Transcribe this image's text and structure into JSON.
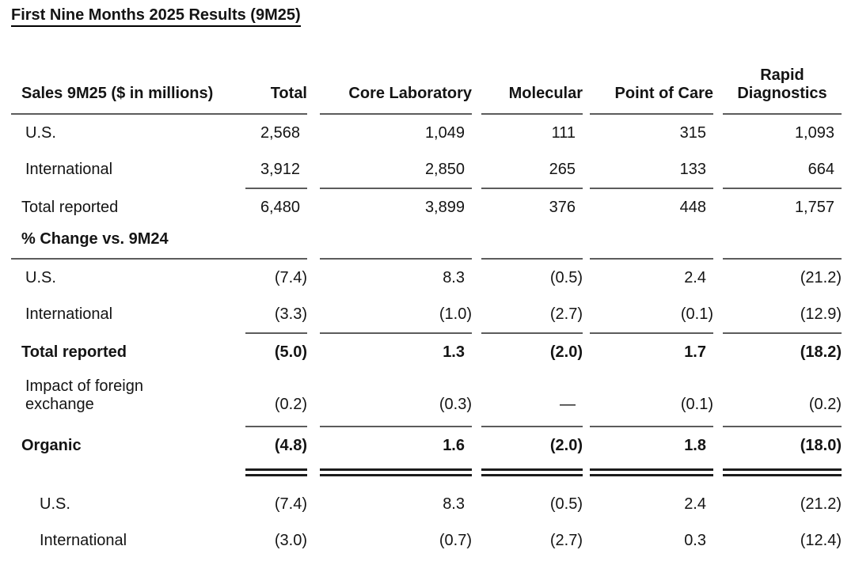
{
  "title": "First Nine Months 2025 Results (9M25)",
  "colors": {
    "text": "#141414",
    "single_rule": "#5c5c5c",
    "double_rule": "#1c1c1c",
    "background": "#ffffff"
  },
  "table": {
    "header": {
      "label": "Sales 9M25 ($ in millions)",
      "columns": [
        "Total",
        "Core Laboratory",
        "Molecular",
        "Point of Care",
        "Rapid Diagnostics"
      ]
    },
    "rows": [
      {
        "type": "rule",
        "variant": "wide"
      },
      {
        "type": "data",
        "label": "U.S.",
        "indent": 1,
        "bold": false,
        "values": [
          "2,568",
          "1,049",
          "111",
          "315",
          "1,093"
        ]
      },
      {
        "type": "data",
        "label": "International",
        "indent": 1,
        "bold": false,
        "values": [
          "3,912",
          "2,850",
          "265",
          "133",
          "664"
        ]
      },
      {
        "type": "rule",
        "variant": "short"
      },
      {
        "type": "data",
        "label": "Total reported",
        "indent": 0,
        "bold": false,
        "values": [
          "6,480",
          "3,899",
          "376",
          "448",
          "1,757"
        ]
      },
      {
        "type": "section",
        "label": "% Change vs. 9M24"
      },
      {
        "type": "rule",
        "variant": "wide"
      },
      {
        "type": "data",
        "label": "U.S.",
        "indent": 1,
        "bold": false,
        "values": [
          "(7.4)",
          "8.3",
          "(0.5)",
          "2.4",
          "(21.2)"
        ]
      },
      {
        "type": "data",
        "label": "International",
        "indent": 1,
        "bold": false,
        "values": [
          "(3.3)",
          "(1.0)",
          "(2.7)",
          "(0.1)",
          "(12.9)"
        ]
      },
      {
        "type": "rule",
        "variant": "short"
      },
      {
        "type": "data",
        "label": "Total reported",
        "indent": 0,
        "bold": true,
        "values": [
          "(5.0)",
          "1.3",
          "(2.0)",
          "1.7",
          "(18.2)"
        ]
      },
      {
        "type": "data",
        "label": "Impact of foreign\nexchange",
        "indent": 1,
        "bold": false,
        "tall": true,
        "values": [
          "(0.2)",
          "(0.3)",
          "—",
          "(0.1)",
          "(0.2)"
        ]
      },
      {
        "type": "rule",
        "variant": "short"
      },
      {
        "type": "data",
        "label": "Organic",
        "indent": 0,
        "bold": true,
        "values": [
          "(4.8)",
          "1.6",
          "(2.0)",
          "1.8",
          "(18.0)"
        ]
      },
      {
        "type": "rule",
        "variant": "double"
      },
      {
        "type": "data",
        "label": "U.S.",
        "indent": 2,
        "bold": false,
        "spaced": true,
        "values": [
          "(7.4)",
          "8.3",
          "(0.5)",
          "2.4",
          "(21.2)"
        ]
      },
      {
        "type": "data",
        "label": "International",
        "indent": 2,
        "bold": false,
        "values": [
          "(3.0)",
          "(0.7)",
          "(2.7)",
          "0.3",
          "(12.4)"
        ]
      }
    ]
  }
}
